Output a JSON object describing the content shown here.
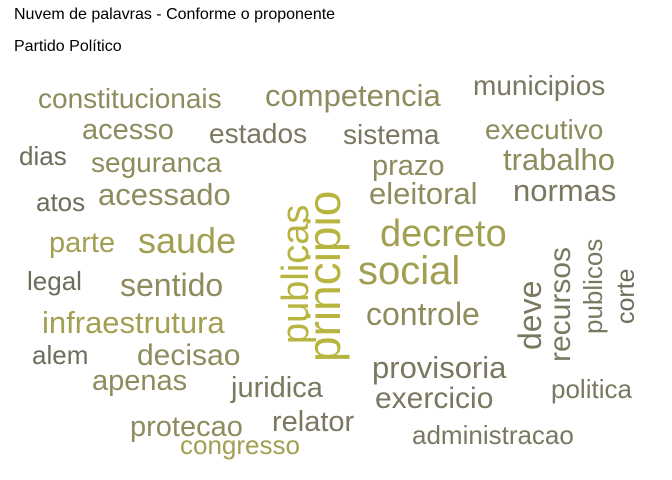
{
  "header": {
    "title": "Nuvem de palavras - Conforme o proponente",
    "subtitle": "Partido Político"
  },
  "colors": {
    "olive_light": "#b8b440",
    "olive": "#a39f52",
    "olive_mid": "#8e8c5e",
    "olive_dark": "#7a7860",
    "gray_olive": "#6e6d5c"
  },
  "chart_data": {
    "type": "wordcloud",
    "title": "Nuvem de palavras - Conforme o proponente",
    "subtitle": "Partido Político",
    "words": [
      {
        "text": "principio",
        "weight": 10,
        "orientation": "vertical",
        "color": "#b8b440"
      },
      {
        "text": "publicas",
        "weight": 8,
        "orientation": "vertical",
        "color": "#b8b440"
      },
      {
        "text": "social",
        "weight": 7,
        "orientation": "horizontal",
        "color": "#a39f52"
      },
      {
        "text": "decreto",
        "weight": 6,
        "orientation": "horizontal",
        "color": "#a39f52"
      },
      {
        "text": "saude",
        "weight": 6,
        "orientation": "horizontal",
        "color": "#a39f52"
      },
      {
        "text": "acessado",
        "weight": 5,
        "orientation": "horizontal",
        "color": "#8e8c5e"
      },
      {
        "text": "eleitoral",
        "weight": 5,
        "orientation": "horizontal",
        "color": "#8e8c5e"
      },
      {
        "text": "controle",
        "weight": 5,
        "orientation": "horizontal",
        "color": "#8e8c5e"
      },
      {
        "text": "sentido",
        "weight": 5,
        "orientation": "horizontal",
        "color": "#8e8c5e"
      },
      {
        "text": "infraestrutura",
        "weight": 5,
        "orientation": "horizontal",
        "color": "#a39f52"
      },
      {
        "text": "competencia",
        "weight": 5,
        "orientation": "horizontal",
        "color": "#8e8c5e"
      },
      {
        "text": "constitucionais",
        "weight": 4,
        "orientation": "horizontal",
        "color": "#8e8c5e"
      },
      {
        "text": "municipios",
        "weight": 4,
        "orientation": "horizontal",
        "color": "#7a7860"
      },
      {
        "text": "acesso",
        "weight": 4,
        "orientation": "horizontal",
        "color": "#8e8c5e"
      },
      {
        "text": "estados",
        "weight": 4,
        "orientation": "horizontal",
        "color": "#7a7860"
      },
      {
        "text": "sistema",
        "weight": 4,
        "orientation": "horizontal",
        "color": "#7a7860"
      },
      {
        "text": "executivo",
        "weight": 4,
        "orientation": "horizontal",
        "color": "#8e8c5e"
      },
      {
        "text": "seguranca",
        "weight": 4,
        "orientation": "horizontal",
        "color": "#8e8c5e"
      },
      {
        "text": "prazo",
        "weight": 4,
        "orientation": "horizontal",
        "color": "#8e8c5e"
      },
      {
        "text": "trabalho",
        "weight": 4,
        "orientation": "horizontal",
        "color": "#8e8c5e"
      },
      {
        "text": "normas",
        "weight": 4,
        "orientation": "horizontal",
        "color": "#7a7860"
      },
      {
        "text": "parte",
        "weight": 4,
        "orientation": "horizontal",
        "color": "#a39f52"
      },
      {
        "text": "recursos",
        "weight": 4,
        "orientation": "vertical",
        "color": "#7a7860"
      },
      {
        "text": "deve",
        "weight": 4,
        "orientation": "vertical",
        "color": "#7a7860"
      },
      {
        "text": "provisoria",
        "weight": 4,
        "orientation": "horizontal",
        "color": "#7a7860"
      },
      {
        "text": "decisao",
        "weight": 4,
        "orientation": "horizontal",
        "color": "#8e8c5e"
      },
      {
        "text": "juridica",
        "weight": 4,
        "orientation": "horizontal",
        "color": "#7a7860"
      },
      {
        "text": "exercicio",
        "weight": 4,
        "orientation": "horizontal",
        "color": "#7a7860"
      },
      {
        "text": "relator",
        "weight": 4,
        "orientation": "horizontal",
        "color": "#7a7860"
      },
      {
        "text": "protecao",
        "weight": 3,
        "orientation": "horizontal",
        "color": "#8e8c5e"
      },
      {
        "text": "apenas",
        "weight": 3,
        "orientation": "horizontal",
        "color": "#8e8c5e"
      },
      {
        "text": "publicos",
        "weight": 3,
        "orientation": "vertical",
        "color": "#7a7860"
      },
      {
        "text": "corte",
        "weight": 3,
        "orientation": "vertical",
        "color": "#6e6d5c"
      },
      {
        "text": "dias",
        "weight": 3,
        "orientation": "horizontal",
        "color": "#6e6d5c"
      },
      {
        "text": "atos",
        "weight": 3,
        "orientation": "horizontal",
        "color": "#6e6d5c"
      },
      {
        "text": "legal",
        "weight": 3,
        "orientation": "horizontal",
        "color": "#6e6d5c"
      },
      {
        "text": "alem",
        "weight": 3,
        "orientation": "horizontal",
        "color": "#6e6d5c"
      },
      {
        "text": "politica",
        "weight": 3,
        "orientation": "horizontal",
        "color": "#7a7860"
      },
      {
        "text": "congresso",
        "weight": 3,
        "orientation": "horizontal",
        "color": "#a39f52"
      },
      {
        "text": "administracao",
        "weight": 3,
        "orientation": "horizontal",
        "color": "#7a7860"
      }
    ]
  }
}
